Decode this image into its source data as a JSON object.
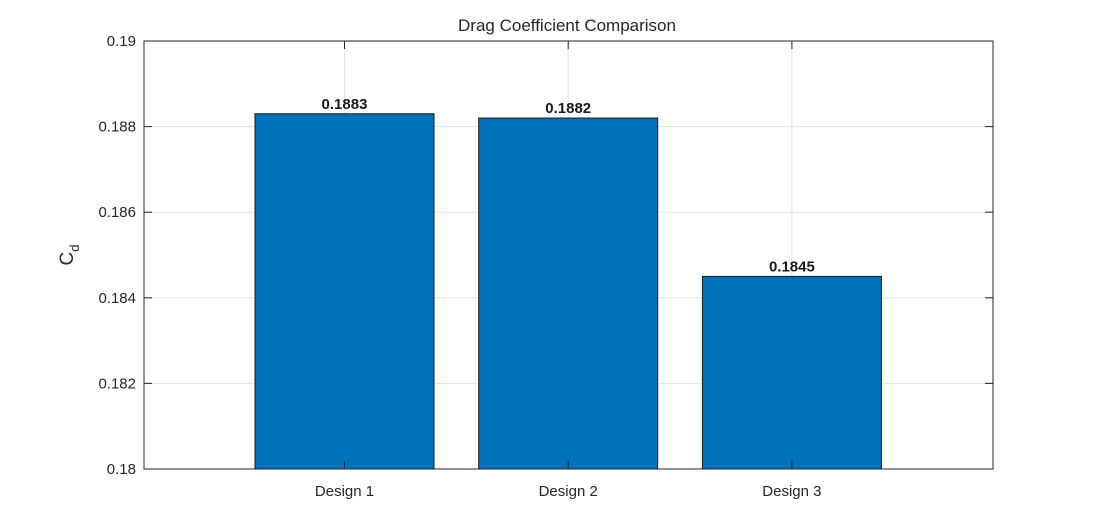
{
  "chart_data": {
    "type": "bar",
    "title": "Drag Coefficient Comparison",
    "xlabel": "",
    "ylabel": "C",
    "ylabel_subscript": "d",
    "categories": [
      "Design 1",
      "Design 2",
      "Design 3"
    ],
    "values": [
      0.1883,
      0.1882,
      0.1845
    ],
    "value_labels": [
      "0.1883",
      "0.1882",
      "0.1845"
    ],
    "ylim": [
      0.18,
      0.19
    ],
    "yticks": [
      0.18,
      0.182,
      0.184,
      0.186,
      0.188,
      0.19
    ],
    "ytick_labels": [
      "0.18",
      "0.182",
      "0.184",
      "0.186",
      "0.188",
      "0.19"
    ],
    "grid": true,
    "bar_color": "#0072BD"
  }
}
